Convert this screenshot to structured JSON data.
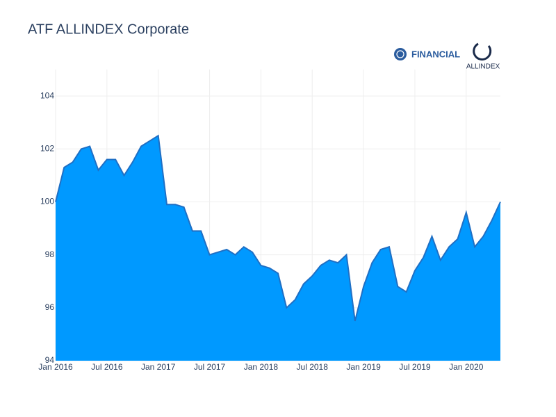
{
  "chart_data": {
    "type": "area",
    "title": "ATF ALLINDEX Corporate",
    "x": [
      "2016-01",
      "2016-02",
      "2016-03",
      "2016-04",
      "2016-05",
      "2016-06",
      "2016-07",
      "2016-08",
      "2016-09",
      "2016-10",
      "2016-11",
      "2016-12",
      "2017-01",
      "2017-02",
      "2017-03",
      "2017-04",
      "2017-05",
      "2017-06",
      "2017-07",
      "2017-08",
      "2017-09",
      "2017-10",
      "2017-11",
      "2017-12",
      "2018-01",
      "2018-02",
      "2018-03",
      "2018-04",
      "2018-05",
      "2018-06",
      "2018-07",
      "2018-08",
      "2018-09",
      "2018-10",
      "2018-11",
      "2018-12",
      "2019-01",
      "2019-02",
      "2019-03",
      "2019-04",
      "2019-05",
      "2019-06",
      "2019-07",
      "2019-08",
      "2019-09",
      "2019-10",
      "2019-11",
      "2019-12",
      "2020-01",
      "2020-02",
      "2020-03",
      "2020-04",
      "2020-05"
    ],
    "values": [
      100.0,
      101.3,
      101.5,
      102.0,
      102.1,
      101.2,
      101.6,
      101.6,
      101.0,
      101.5,
      102.1,
      102.3,
      102.5,
      99.9,
      99.9,
      99.8,
      98.9,
      98.9,
      98.0,
      98.1,
      98.2,
      98.0,
      98.3,
      98.1,
      97.6,
      97.5,
      97.3,
      96.0,
      96.3,
      96.9,
      97.2,
      97.6,
      97.8,
      97.7,
      98.0,
      95.5,
      96.8,
      97.7,
      98.2,
      98.3,
      96.8,
      96.6,
      97.4,
      97.9,
      98.7,
      97.8,
      98.3,
      98.6,
      99.6,
      98.3,
      98.7,
      99.3,
      100.0
    ],
    "color": "#0099ff",
    "line_color": "#1f6fc4",
    "xlim": [
      "2016-01",
      "2020-05"
    ],
    "xticks": [
      {
        "value": "2016-01",
        "label": "Jan 2016"
      },
      {
        "value": "2016-07",
        "label": "Jul 2016"
      },
      {
        "value": "2017-01",
        "label": "Jan 2017"
      },
      {
        "value": "2017-07",
        "label": "Jul 2017"
      },
      {
        "value": "2018-01",
        "label": "Jan 2018"
      },
      {
        "value": "2018-07",
        "label": "Jul 2018"
      },
      {
        "value": "2019-01",
        "label": "Jan 2019"
      },
      {
        "value": "2019-07",
        "label": "Jul 2019"
      },
      {
        "value": "2020-01",
        "label": "Jan 2020"
      }
    ],
    "ylim": [
      94,
      105
    ],
    "yticks": [
      94,
      96,
      98,
      100,
      102,
      104
    ],
    "grid": true
  },
  "logos": [
    "FINANCIAL",
    "ALLINDEX"
  ]
}
